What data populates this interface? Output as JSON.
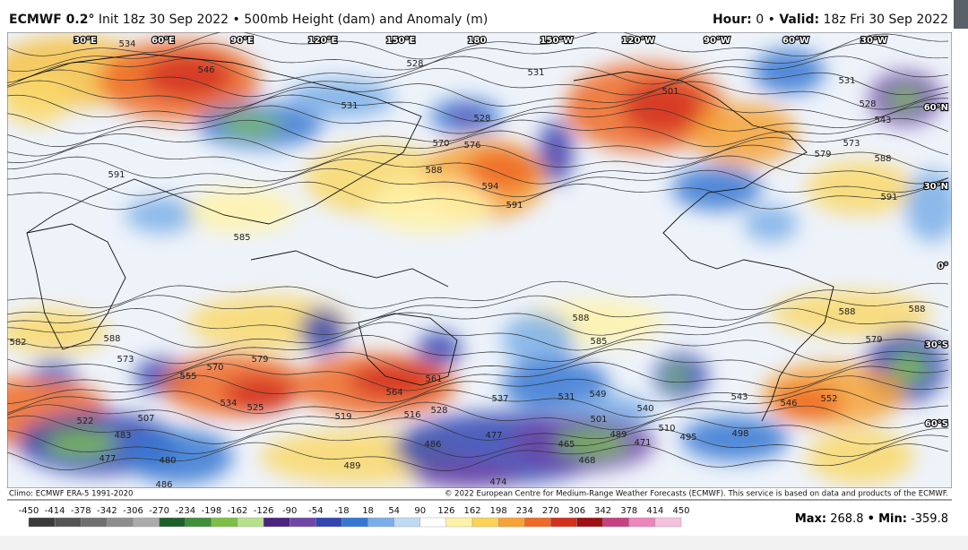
{
  "header": {
    "model": "ECMWF 0.2°",
    "description": "Init 18z 30 Sep 2022 • 500mb Height (dam) and Anomaly (m)",
    "hour_label": "Hour:",
    "hour": "0",
    "separator": "•",
    "valid_label": "Valid:",
    "valid": "18z Fri 30 Sep 2022"
  },
  "map": {
    "longitude_labels": [
      "30°E",
      "60°E",
      "90°E",
      "120°E",
      "150°E",
      "180",
      "150°W",
      "120°W",
      "90°W",
      "60°W",
      "30°W"
    ],
    "latitude_labels": [
      "60°N",
      "30°N",
      "0°",
      "30°S",
      "60°S"
    ],
    "contour_labels": [
      534,
      528,
      546,
      531,
      528,
      531,
      570,
      576,
      588,
      594,
      591,
      501,
      531,
      528,
      543,
      573,
      579,
      588,
      591,
      585,
      591,
      588,
      585,
      588,
      582,
      573,
      555,
      570,
      579,
      564,
      561,
      537,
      531,
      549,
      540,
      543,
      546,
      552,
      588,
      588,
      579,
      534,
      525,
      519,
      516,
      528,
      522,
      507,
      483,
      477,
      480,
      486,
      489,
      501,
      489,
      471,
      465,
      468,
      477,
      486,
      474,
      510,
      495,
      498
    ]
  },
  "footer": {
    "climo": "Climo: ECMWF ERA-5 1991-2020",
    "copyright": "© 2022 European Centre for Medium-Range Weather Forecasts (ECMWF). This service is based on data and products of the ECMWF.",
    "max_label": "Max:",
    "max": 268.8,
    "min_label": "Min:",
    "min": -359.8
  },
  "colorbar": {
    "ticks": [
      -450,
      -414,
      -378,
      -342,
      -306,
      -270,
      -234,
      -198,
      -162,
      -126,
      -90,
      -54,
      -18,
      18,
      54,
      90,
      126,
      162,
      198,
      234,
      270,
      306,
      342,
      378,
      414,
      450
    ],
    "colors": [
      "#3a3a3a",
      "#555555",
      "#707070",
      "#8d8d8d",
      "#ababab",
      "#1f5f2a",
      "#3f8f3a",
      "#7cbf44",
      "#b7e08a",
      "#4b2380",
      "#6e47a8",
      "#3346b0",
      "#3677d2",
      "#79aee8",
      "#c0daf4",
      "#ffffff",
      "#fff2a8",
      "#fbd256",
      "#f6a235",
      "#ee6a27",
      "#d3301e",
      "#9e0f16",
      "#c8407f",
      "#ec86bb",
      "#f5c2de"
    ]
  }
}
